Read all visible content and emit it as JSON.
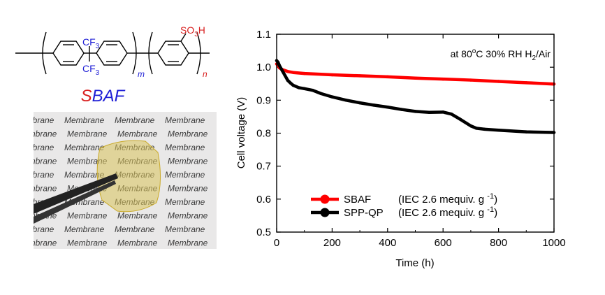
{
  "structure": {
    "ch3_label": "CF",
    "ch3_sub": "3",
    "so3h_label": "SO",
    "so3h_sub": "3",
    "so3h_h": "H",
    "m_label": "m",
    "n_label": "n",
    "polymer_name_s": "S",
    "polymer_name_rest": "BAF",
    "colors": {
      "bonds": "#000000",
      "cf3": "#1f1fd6",
      "so3h": "#d81e1e",
      "sub_index": "#1f1fd6"
    }
  },
  "photo": {
    "watermark_word": "Membrane",
    "film_color": "#d8c25a",
    "background_color": "#e9e8e8",
    "tweezer_color": "#222222"
  },
  "chart_data": {
    "type": "line",
    "ylabel": "Cell voltage (V)",
    "xlabel": "Time (h)",
    "xlim": [
      0,
      1000
    ],
    "ylim": [
      0.5,
      1.1
    ],
    "xticks": [
      0,
      200,
      400,
      600,
      800,
      1000
    ],
    "yticks": [
      0.5,
      0.6,
      0.7,
      0.8,
      0.9,
      1.0,
      1.1
    ],
    "ytick_labels": [
      "0.5",
      "0.6",
      "0.7",
      "0.8",
      "0.9",
      "1.0",
      "1.1"
    ],
    "condition_label_pre": "at 80",
    "condition_label_deg": "o",
    "condition_label_mid": "C 30% RH H",
    "condition_label_sub": "2",
    "condition_label_post": "/Air",
    "legend_position": "bottom-center",
    "series": [
      {
        "name": "SBAF",
        "legend_note": "(IEC 2.6 mequiv. g",
        "legend_exp": "-1",
        "legend_close": ")",
        "color": "#ff0000",
        "x": [
          0,
          5,
          10,
          20,
          40,
          60,
          100,
          200,
          300,
          400,
          500,
          600,
          700,
          800,
          900,
          1000
        ],
        "y": [
          1.01,
          1.005,
          0.998,
          0.993,
          0.987,
          0.984,
          0.981,
          0.977,
          0.974,
          0.971,
          0.967,
          0.964,
          0.961,
          0.957,
          0.953,
          0.949
        ]
      },
      {
        "name": "SPP-QP",
        "legend_note": "(IEC 2.6 mequiv. g",
        "legend_exp": "-1",
        "legend_close": ")",
        "color": "#000000",
        "x": [
          0,
          5,
          10,
          20,
          30,
          40,
          50,
          60,
          80,
          100,
          130,
          160,
          200,
          250,
          300,
          350,
          400,
          450,
          500,
          550,
          600,
          630,
          660,
          700,
          720,
          750,
          800,
          900,
          1000
        ],
        "y": [
          1.02,
          1.015,
          1.005,
          0.99,
          0.975,
          0.96,
          0.952,
          0.945,
          0.938,
          0.935,
          0.93,
          0.92,
          0.91,
          0.9,
          0.892,
          0.885,
          0.879,
          0.872,
          0.866,
          0.863,
          0.864,
          0.858,
          0.843,
          0.822,
          0.815,
          0.812,
          0.809,
          0.804,
          0.802
        ]
      }
    ]
  }
}
